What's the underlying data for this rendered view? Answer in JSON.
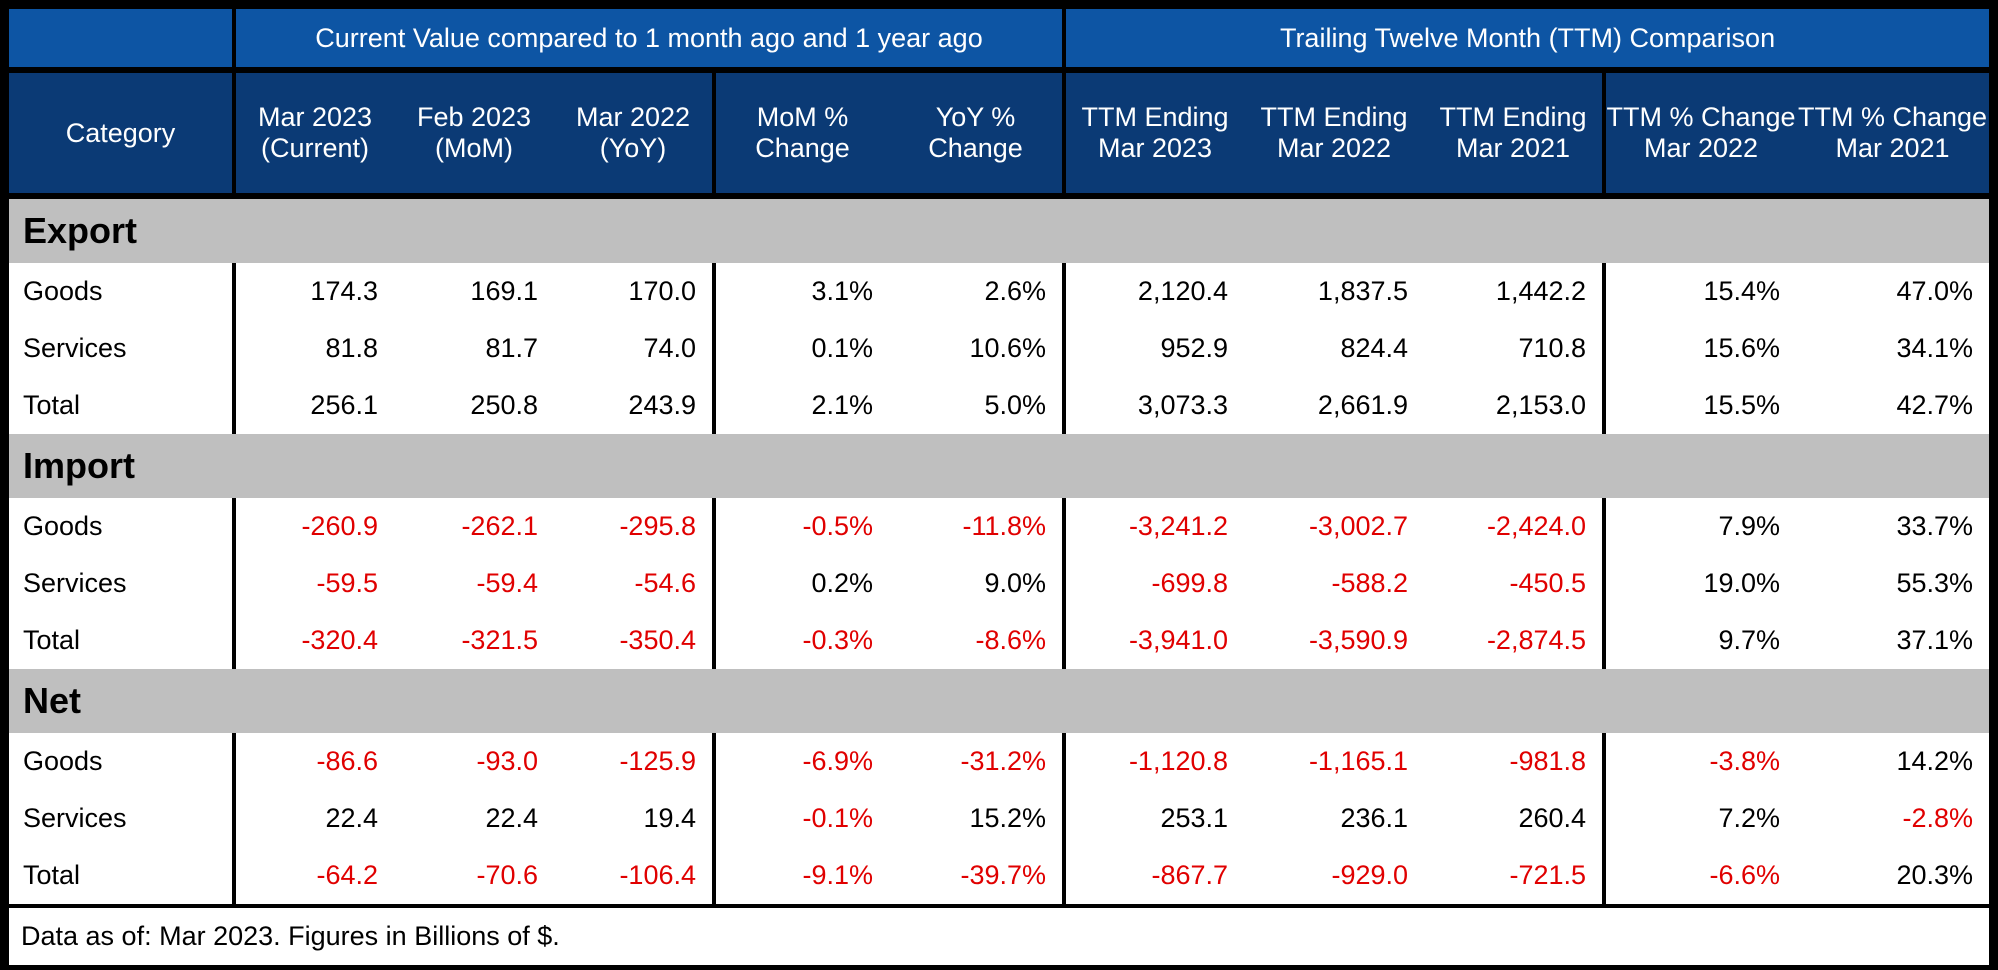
{
  "header": {
    "group_current": "Current Value compared to 1 month ago and 1 year ago",
    "group_ttm": "Trailing Twelve Month (TTM) Comparison"
  },
  "columns": [
    "Category",
    "Mar 2023 (Current)",
    "Feb 2023 (MoM)",
    "Mar 2022 (YoY)",
    "MoM % Change",
    "YoY % Change",
    "TTM Ending Mar 2023",
    "TTM Ending Mar 2022",
    "TTM Ending Mar 2021",
    "TTM % Change Mar 2022",
    "TTM % Change Mar 2021"
  ],
  "sections": [
    {
      "name": "Export",
      "rows": [
        {
          "category": "Goods",
          "values": [
            "174.3",
            "169.1",
            "170.0",
            "3.1%",
            "2.6%",
            "2,120.4",
            "1,837.5",
            "1,442.2",
            "15.4%",
            "47.0%"
          ]
        },
        {
          "category": "Services",
          "values": [
            "81.8",
            "81.7",
            "74.0",
            "0.1%",
            "10.6%",
            "952.9",
            "824.4",
            "710.8",
            "15.6%",
            "34.1%"
          ]
        },
        {
          "category": "Total",
          "values": [
            "256.1",
            "250.8",
            "243.9",
            "2.1%",
            "5.0%",
            "3,073.3",
            "2,661.9",
            "2,153.0",
            "15.5%",
            "42.7%"
          ]
        }
      ]
    },
    {
      "name": "Import",
      "rows": [
        {
          "category": "Goods",
          "values": [
            "-260.9",
            "-262.1",
            "-295.8",
            "-0.5%",
            "-11.8%",
            "-3,241.2",
            "-3,002.7",
            "-2,424.0",
            "7.9%",
            "33.7%"
          ]
        },
        {
          "category": "Services",
          "values": [
            "-59.5",
            "-59.4",
            "-54.6",
            "0.2%",
            "9.0%",
            "-699.8",
            "-588.2",
            "-450.5",
            "19.0%",
            "55.3%"
          ]
        },
        {
          "category": "Total",
          "values": [
            "-320.4",
            "-321.5",
            "-350.4",
            "-0.3%",
            "-8.6%",
            "-3,941.0",
            "-3,590.9",
            "-2,874.5",
            "9.7%",
            "37.1%"
          ]
        }
      ]
    },
    {
      "name": "Net",
      "rows": [
        {
          "category": "Goods",
          "values": [
            "-86.6",
            "-93.0",
            "-125.9",
            "-6.9%",
            "-31.2%",
            "-1,120.8",
            "-1,165.1",
            "-981.8",
            "-3.8%",
            "14.2%"
          ]
        },
        {
          "category": "Services",
          "values": [
            "22.4",
            "22.4",
            "19.4",
            "-0.1%",
            "15.2%",
            "253.1",
            "236.1",
            "260.4",
            "7.2%",
            "-2.8%"
          ]
        },
        {
          "category": "Total",
          "values": [
            "-64.2",
            "-70.6",
            "-106.4",
            "-9.1%",
            "-39.7%",
            "-867.7",
            "-929.0",
            "-721.5",
            "-6.6%",
            "20.3%"
          ]
        }
      ]
    }
  ],
  "footer": "Data as of: Mar 2023. Figures in Billions of $.",
  "colors": {
    "group_header_bg": "#0d55a4",
    "column_header_bg": "#0b3a75",
    "section_bg": "#bfbfbf",
    "negative_text": "#e00000"
  },
  "chart_data": {
    "type": "table",
    "columns": [
      "Category",
      "Mar 2023 (Current)",
      "Feb 2023 (MoM)",
      "Mar 2022 (YoY)",
      "MoM % Change",
      "YoY % Change",
      "TTM Ending Mar 2023",
      "TTM Ending Mar 2022",
      "TTM Ending Mar 2021",
      "TTM % Change Mar 2022",
      "TTM % Change Mar 2021"
    ],
    "rows": [
      {
        "section": "Export",
        "category": "Goods",
        "values": [
          174.3,
          169.1,
          170.0,
          3.1,
          2.6,
          2120.4,
          1837.5,
          1442.2,
          15.4,
          47.0
        ]
      },
      {
        "section": "Export",
        "category": "Services",
        "values": [
          81.8,
          81.7,
          74.0,
          0.1,
          10.6,
          952.9,
          824.4,
          710.8,
          15.6,
          34.1
        ]
      },
      {
        "section": "Export",
        "category": "Total",
        "values": [
          256.1,
          250.8,
          243.9,
          2.1,
          5.0,
          3073.3,
          2661.9,
          2153.0,
          15.5,
          42.7
        ]
      },
      {
        "section": "Import",
        "category": "Goods",
        "values": [
          -260.9,
          -262.1,
          -295.8,
          -0.5,
          -11.8,
          -3241.2,
          -3002.7,
          -2424.0,
          7.9,
          33.7
        ]
      },
      {
        "section": "Import",
        "category": "Services",
        "values": [
          -59.5,
          -59.4,
          -54.6,
          0.2,
          9.0,
          -699.8,
          -588.2,
          -450.5,
          19.0,
          55.3
        ]
      },
      {
        "section": "Import",
        "category": "Total",
        "values": [
          -320.4,
          -321.5,
          -350.4,
          -0.3,
          -8.6,
          -3941.0,
          -3590.9,
          -2874.5,
          9.7,
          37.1
        ]
      },
      {
        "section": "Net",
        "category": "Goods",
        "values": [
          -86.6,
          -93.0,
          -125.9,
          -6.9,
          -31.2,
          -1120.8,
          -1165.1,
          -981.8,
          -3.8,
          14.2
        ]
      },
      {
        "section": "Net",
        "category": "Services",
        "values": [
          22.4,
          22.4,
          19.4,
          -0.1,
          15.2,
          253.1,
          236.1,
          260.4,
          7.2,
          -2.8
        ]
      },
      {
        "section": "Net",
        "category": "Total",
        "values": [
          -64.2,
          -70.6,
          -106.4,
          -9.1,
          -39.7,
          -867.7,
          -929.0,
          -721.5,
          -6.6,
          20.3
        ]
      }
    ]
  }
}
